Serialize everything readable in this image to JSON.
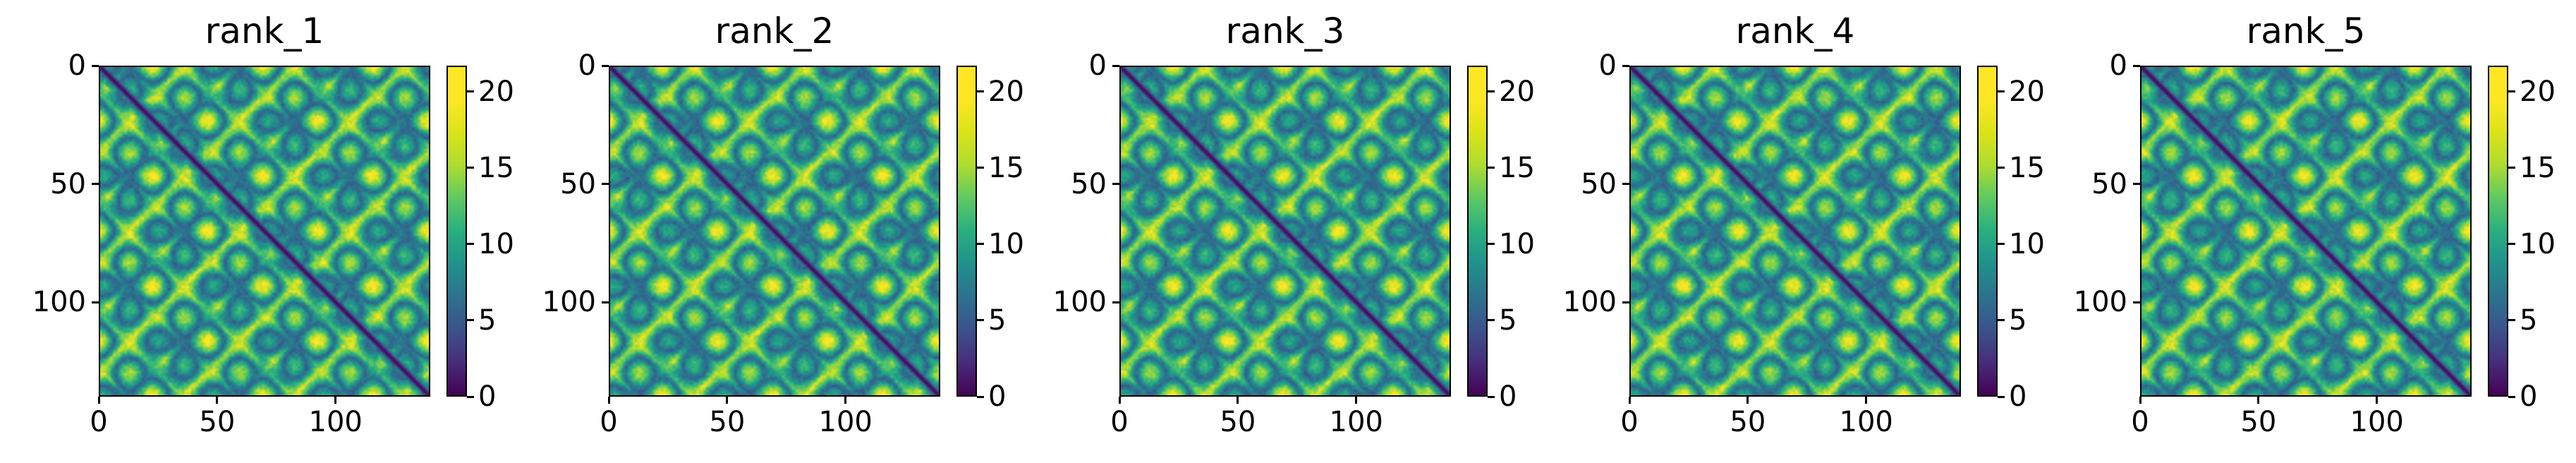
{
  "figure": {
    "chart_data": [
      {
        "type": "heatmap",
        "title": "rank_1",
        "matrix_size": 140,
        "x_ticks": [
          0,
          50,
          100
        ],
        "y_ticks": [
          0,
          50,
          100
        ],
        "xlim": [
          0,
          140
        ],
        "ylim": [
          140,
          0
        ],
        "colorbar": {
          "min": 0,
          "max": 21.7,
          "ticks": [
            0,
            5,
            10,
            15,
            20
          ],
          "colormap": "viridis"
        },
        "description_values": {
          "diagonal": 0,
          "contact_value_min": 3,
          "far_value": 21.7
        }
      },
      {
        "type": "heatmap",
        "title": "rank_2",
        "matrix_size": 140,
        "x_ticks": [
          0,
          50,
          100
        ],
        "y_ticks": [
          0,
          50,
          100
        ],
        "xlim": [
          0,
          140
        ],
        "ylim": [
          140,
          0
        ],
        "colorbar": {
          "min": 0,
          "max": 21.7,
          "ticks": [
            0,
            5,
            10,
            15,
            20
          ],
          "colormap": "viridis"
        },
        "description_values": {
          "diagonal": 0,
          "contact_value_min": 3,
          "far_value": 21.7
        }
      },
      {
        "type": "heatmap",
        "title": "rank_3",
        "matrix_size": 140,
        "x_ticks": [
          0,
          50,
          100
        ],
        "y_ticks": [
          0,
          50,
          100
        ],
        "xlim": [
          0,
          140
        ],
        "ylim": [
          140,
          0
        ],
        "colorbar": {
          "min": 0,
          "max": 21.7,
          "ticks": [
            0,
            5,
            10,
            15,
            20
          ],
          "colormap": "viridis"
        },
        "description_values": {
          "diagonal": 0,
          "contact_value_min": 3,
          "far_value": 21.7
        }
      },
      {
        "type": "heatmap",
        "title": "rank_4",
        "matrix_size": 140,
        "x_ticks": [
          0,
          50,
          100
        ],
        "y_ticks": [
          0,
          50,
          100
        ],
        "xlim": [
          0,
          140
        ],
        "ylim": [
          140,
          0
        ],
        "colorbar": {
          "min": 0,
          "max": 21.7,
          "ticks": [
            0,
            5,
            10,
            15,
            20
          ],
          "colormap": "viridis"
        },
        "description_values": {
          "diagonal": 0,
          "contact_value_min": 3,
          "far_value": 21.7
        }
      },
      {
        "type": "heatmap",
        "title": "rank_5",
        "matrix_size": 140,
        "x_ticks": [
          0,
          50,
          100
        ],
        "y_ticks": [
          0,
          50,
          100
        ],
        "xlim": [
          0,
          140
        ],
        "ylim": [
          140,
          0
        ],
        "colorbar": {
          "min": 0,
          "max": 21.7,
          "ticks": [
            0,
            5,
            10,
            15,
            20
          ],
          "colormap": "viridis"
        },
        "description_values": {
          "diagonal": 0,
          "contact_value_min": 3,
          "far_value": 21.7
        }
      }
    ]
  }
}
